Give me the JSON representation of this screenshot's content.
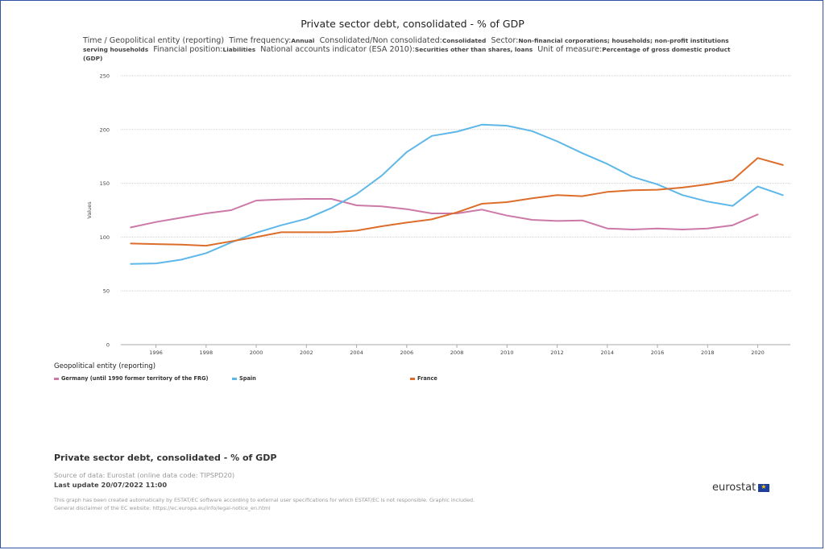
{
  "title": "Private sector debt, consolidated - % of GDP",
  "subtitle": [
    {
      "k": "Time / Geopolitical entity (reporting)",
      "v": ""
    },
    {
      "k": "Time frequency:",
      "v": "Annual"
    },
    {
      "k": "Consolidated/Non consolidated:",
      "v": "Consolidated"
    },
    {
      "k": "Sector:",
      "v": "Non-financial corporations; households; non-profit institutions serving households"
    },
    {
      "k": "Financial position:",
      "v": "Liabilities"
    },
    {
      "k": "National accounts indicator (ESA 2010):",
      "v": "Securities other than shares, loans"
    },
    {
      "k": "Unit of measure:",
      "v": "Percentage of gross domestic product (GDP)"
    }
  ],
  "legend_title": "Geopolitical entity (reporting)",
  "footer": {
    "title": "Private sector debt, consolidated - % of GDP",
    "source": "Source of data: Eurostat (online data code: TIPSPD20)",
    "update": "Last update 20/07/2022 11:00",
    "disclaimer1": "This graph has been created automatically by ESTAT/EC software according to external user specifications for which ESTAT/EC is not responsible. Graphic included.",
    "disclaimer2": "General disclaimer of the EC website: https://ec.europa.eu/info/legal-notice_en.html",
    "logo": "eurostat"
  },
  "chart_data": {
    "type": "line",
    "ylabel": "Values",
    "xlabel": "",
    "ylim": [
      0,
      250
    ],
    "yticks": [
      0,
      50,
      100,
      150,
      200,
      250
    ],
    "xlim": [
      1994.6,
      2021.3
    ],
    "xticks": [
      1996,
      1998,
      2000,
      2002,
      2004,
      2006,
      2008,
      2010,
      2012,
      2014,
      2016,
      2018,
      2020
    ],
    "grid": true,
    "legend_position": "bottom",
    "x": [
      1995,
      1996,
      1997,
      1998,
      1999,
      2000,
      2001,
      2002,
      2003,
      2004,
      2005,
      2006,
      2007,
      2008,
      2009,
      2010,
      2011,
      2012,
      2013,
      2014,
      2015,
      2016,
      2017,
      2018,
      2019,
      2020,
      2021
    ],
    "series": [
      {
        "name": "Germany (until 1990 former territory of the FRG)",
        "color": "#cc79a7",
        "values": [
          109,
          114,
          118,
          122,
          125,
          134,
          135,
          135.5,
          135.5,
          129.5,
          128.5,
          126,
          122,
          122,
          125.5,
          120,
          116,
          115,
          115.5,
          108,
          107,
          108,
          107,
          108,
          111,
          121,
          null
        ]
      },
      {
        "name": "Spain",
        "color": "#5db7e8",
        "values": [
          75,
          75.5,
          79,
          85,
          95,
          104,
          111,
          117,
          127,
          140,
          157,
          179,
          194,
          198,
          204.5,
          203.5,
          198.5,
          189,
          178,
          168,
          156,
          149,
          139,
          133,
          129,
          147,
          139
        ]
      },
      {
        "name": "France",
        "color": "#dd6d2a",
        "values": [
          94,
          93.5,
          93,
          92,
          96,
          100,
          104.5,
          104.5,
          104.5,
          106,
          110,
          113.5,
          116.5,
          123,
          131,
          132.5,
          136,
          139,
          138,
          142,
          143.5,
          144,
          146,
          149,
          153,
          173.5,
          167
        ]
      }
    ]
  }
}
